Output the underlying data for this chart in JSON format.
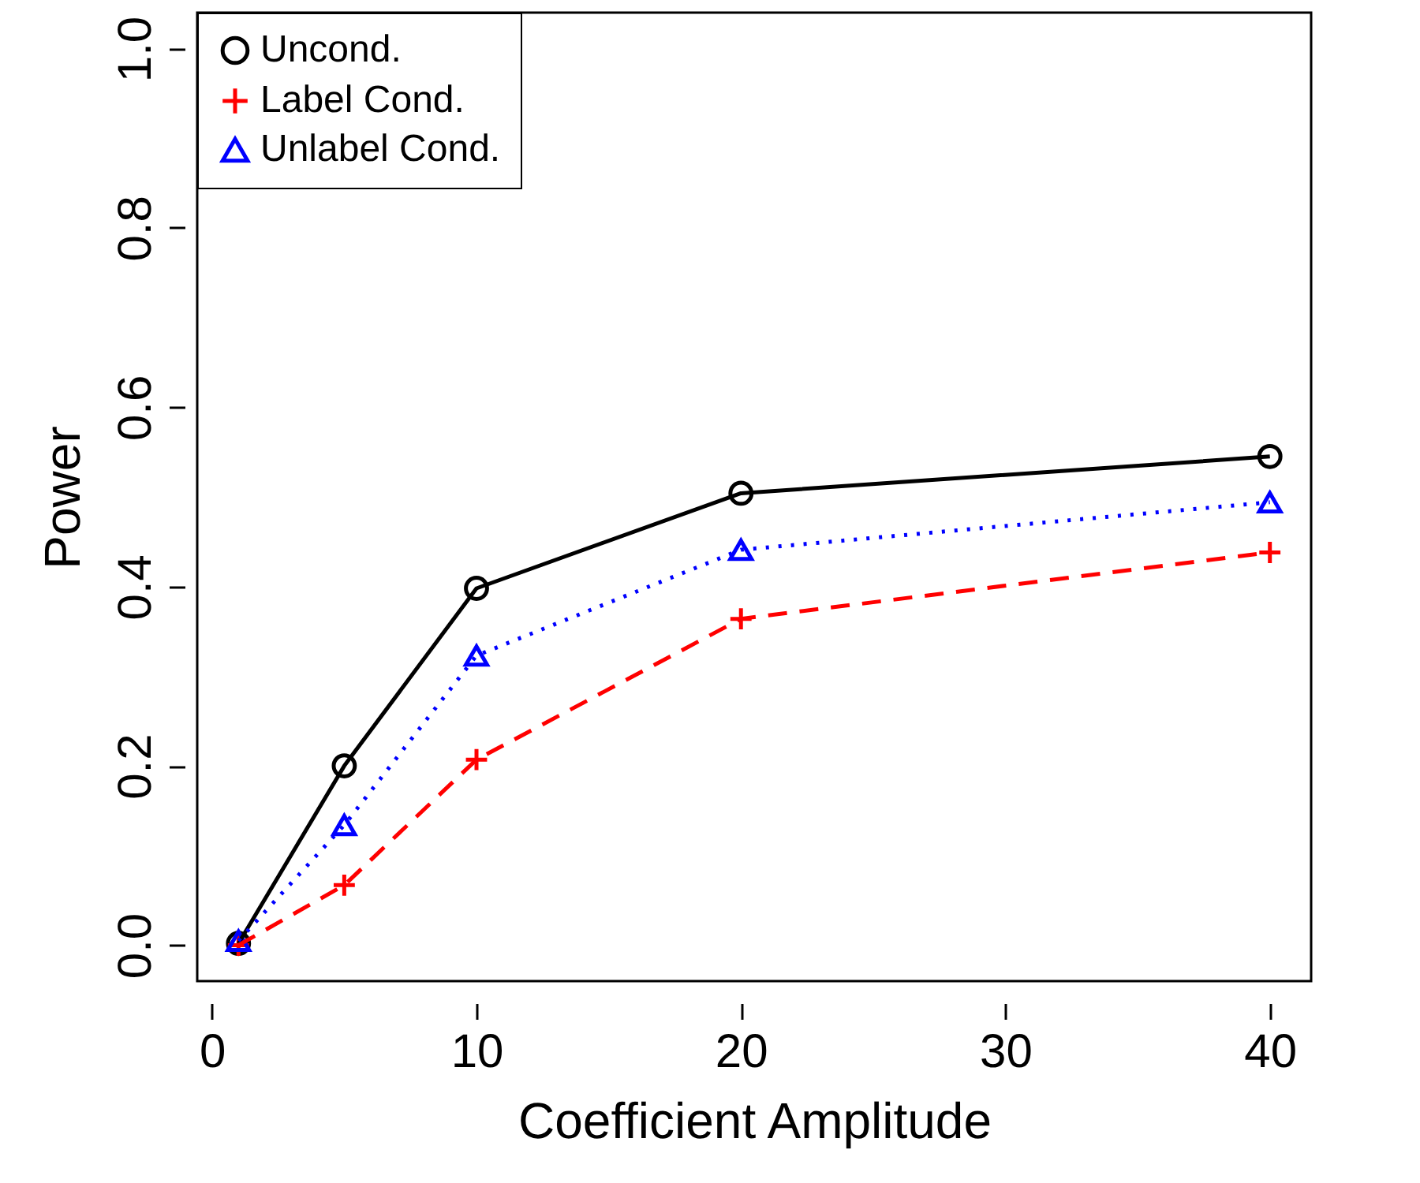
{
  "chart_data": {
    "type": "line",
    "xlabel": "Coefficient Amplitude",
    "ylabel": "Power",
    "x": [
      1,
      5,
      10,
      20,
      40
    ],
    "series": [
      {
        "name": "Uncond.",
        "color": "#000000",
        "marker": "circle",
        "line_style": "solid",
        "values": [
          0.002,
          0.2,
          0.398,
          0.504,
          0.545
        ]
      },
      {
        "name": "Label Cond.",
        "color": "#ff0000",
        "marker": "cross",
        "line_style": "dashed",
        "values": [
          0,
          0.067,
          0.207,
          0.364,
          0.438
        ]
      },
      {
        "name": "Unlabel Cond.",
        "color": "#0000ff",
        "marker": "triangle",
        "line_style": "dotted",
        "values": [
          0.005,
          0.134,
          0.323,
          0.441,
          0.494
        ]
      }
    ],
    "xlim": [
      -0.56,
      41.56
    ],
    "ylim": [
      -0.04,
      1.04
    ],
    "xticks": [
      0,
      10,
      20,
      30,
      40
    ],
    "yticks": [
      {
        "value": 0,
        "label": "0.0"
      },
      {
        "value": 0.2,
        "label": "0.2"
      },
      {
        "value": 0.4,
        "label": "0.4"
      },
      {
        "value": 0.6,
        "label": "0.6"
      },
      {
        "value": 0.8,
        "label": "0.8"
      },
      {
        "value": 1,
        "label": "1.0"
      }
    ],
    "grid": false,
    "legend": "top left"
  }
}
